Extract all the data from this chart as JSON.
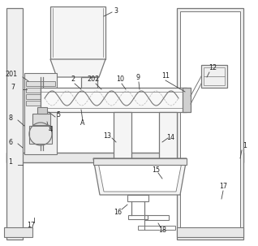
{
  "bg_color": "#ffffff",
  "line_color": "#777777",
  "dark_line": "#444444",
  "fig_w": 3.18,
  "fig_h": 3.03,
  "dpi": 100
}
